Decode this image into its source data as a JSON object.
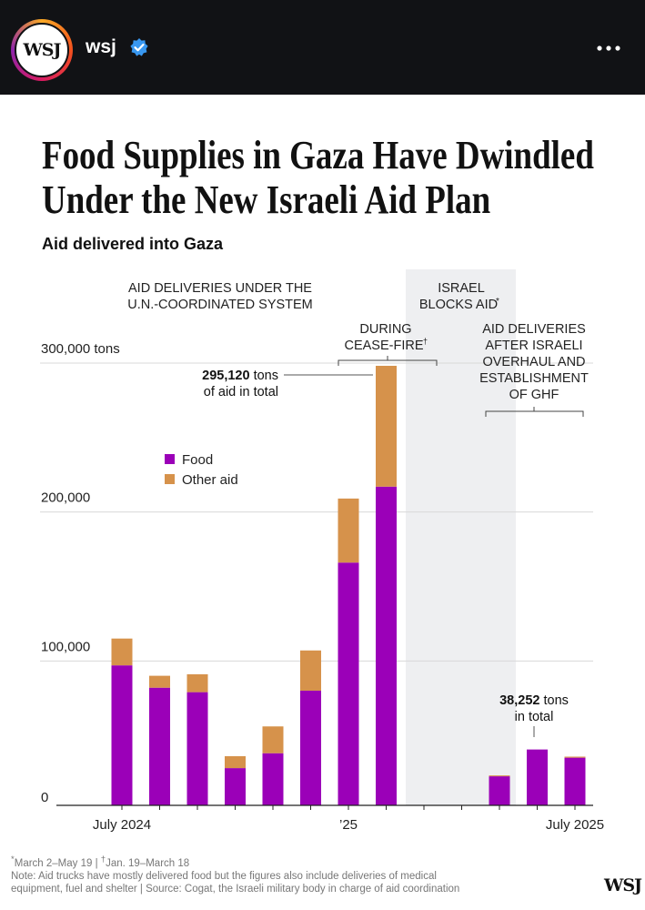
{
  "header": {
    "brand_logo": "WSJ",
    "username": "wsj",
    "verified": true,
    "menu_icon": "more-horizontal-icon"
  },
  "headline": {
    "line1": "Food Supplies in Gaza Have Dwindled",
    "line2": "Under the New Israeli Aid Plan",
    "subtitle": "Aid delivered into Gaza"
  },
  "chart_data": {
    "type": "bar",
    "stacked": true,
    "title": "Aid delivered into Gaza",
    "categories": [
      "2024-07",
      "2024-08",
      "2024-09",
      "2024-10",
      "2024-11",
      "2024-12",
      "2025-01",
      "2025-02",
      "2025-03",
      "2025-04",
      "2025-05",
      "2025-06",
      "2025-07"
    ],
    "series": [
      {
        "name": "Food",
        "color": "#9b00b8",
        "values": [
          94000,
          79000,
          76000,
          25000,
          35000,
          77000,
          163000,
          214000,
          0,
          0,
          19500,
          37500,
          32000
        ]
      },
      {
        "name": "Other aid",
        "color": "#d6924b",
        "values": [
          18000,
          8000,
          12000,
          8000,
          18000,
          27000,
          43000,
          81120,
          0,
          0,
          600,
          0,
          700
        ]
      }
    ],
    "ylim": [
      0,
      300000
    ],
    "yticks": [
      {
        "value": 0,
        "label": "0"
      },
      {
        "value": 100000,
        "label": "100,000"
      },
      {
        "value": 200000,
        "label": "200,000"
      },
      {
        "value": 300000,
        "label": "300,000 tons"
      }
    ],
    "xticks": [
      {
        "index": 0,
        "label": "July 2024"
      },
      {
        "index": 6,
        "label": "’25"
      },
      {
        "index": 12,
        "label": "July 2025"
      }
    ],
    "legend": {
      "position": "left",
      "entries": [
        "Food",
        "Other aid"
      ]
    },
    "annotations": {
      "un_system": {
        "line1": "AID DELIVERIES UNDER THE",
        "line2": "U.N.-COORDINATED SYSTEM"
      },
      "cease_fire": {
        "line1": "DURING",
        "line2": "CEASE-FIRE",
        "mark": "†"
      },
      "israel_blocks": {
        "line1": "ISRAEL",
        "line2": "BLOCKS AID",
        "mark": "*"
      },
      "after_overhaul": {
        "line1": "AID DELIVERIES",
        "line2": "AFTER ISRAELI",
        "line3": "OVERHAUL AND",
        "line4": "ESTABLISHMENT",
        "line5": "OF GHF"
      },
      "total_un": {
        "value": "295,120",
        "unit": " tons",
        "line2": "of aid in total"
      },
      "total_ghf": {
        "value": "38,252",
        "unit": " tons",
        "line2": "in total"
      }
    }
  },
  "footnotes": {
    "star": "*",
    "star_text": "March 2–May 19 | ",
    "dagger": "†",
    "dagger_text": "Jan. 19–March 18",
    "note_line1": "Note: Aid trucks have mostly delivered food but the figures also include deliveries of medical",
    "note_line2": "equipment, fuel and shelter | Source: Cogat, the Israeli military body in charge of aid coordination"
  },
  "footer_logo": "WSJ"
}
